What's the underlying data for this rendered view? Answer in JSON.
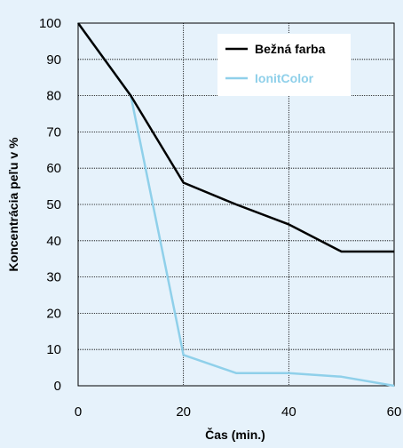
{
  "chart_data": {
    "type": "line",
    "title": "",
    "xlabel": "Čas (min.)",
    "ylabel": "Koncentrácia peľu v %",
    "xlim": [
      0,
      60
    ],
    "ylim": [
      0,
      100
    ],
    "xticks": [
      0,
      20,
      40,
      60
    ],
    "yticks": [
      0,
      10,
      20,
      30,
      40,
      50,
      60,
      70,
      80,
      90,
      100
    ],
    "grid": "dotted",
    "legend_position": "top-right",
    "series": [
      {
        "name": "Bežná farba",
        "color": "#000000",
        "x": [
          0,
          10,
          20,
          30,
          40,
          50,
          60
        ],
        "y": [
          100,
          80,
          56,
          50,
          44.5,
          37,
          37
        ]
      },
      {
        "name": "IonitColor",
        "color": "#8fd0ea",
        "x": [
          0,
          10,
          20,
          30,
          40,
          50,
          60
        ],
        "y": [
          100,
          80,
          8.5,
          3.5,
          3.5,
          2.5,
          0
        ]
      }
    ]
  }
}
